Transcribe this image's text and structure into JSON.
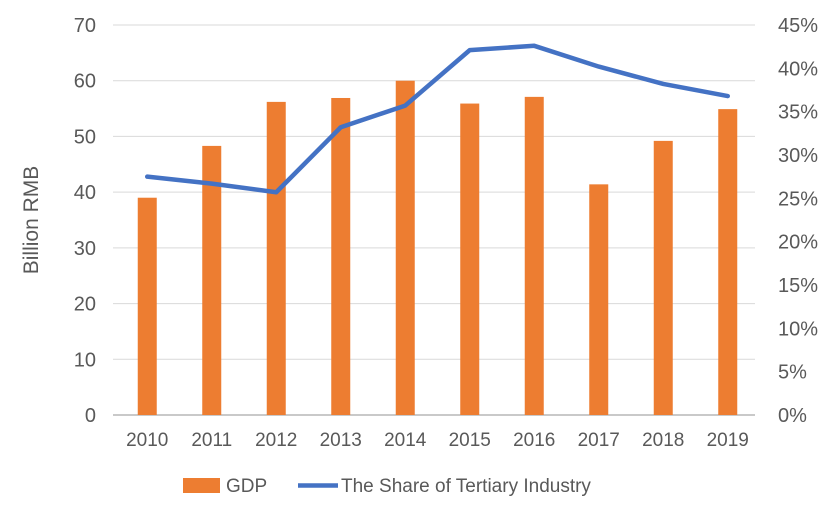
{
  "chart_data": {
    "type": "bar",
    "subtype": "combo-bar-line-dual-axis",
    "title": "",
    "categories": [
      "2010",
      "2011",
      "2012",
      "2013",
      "2014",
      "2015",
      "2016",
      "2017",
      "2018",
      "2019"
    ],
    "series": [
      {
        "name": "GDP",
        "type": "bar",
        "axis": "left",
        "color": "#ED7D31",
        "values": [
          39.0,
          48.3,
          56.2,
          56.9,
          60.0,
          55.9,
          57.1,
          41.4,
          49.2,
          54.9
        ]
      },
      {
        "name": "The Share of Tertiary Industry",
        "type": "line",
        "axis": "right",
        "color": "#4472C4",
        "values": [
          27.5,
          26.7,
          25.7,
          33.2,
          35.7,
          42.1,
          42.6,
          40.2,
          38.2,
          36.8
        ]
      }
    ],
    "left_axis": {
      "label": "Billion RMB",
      "min": 0,
      "max": 70,
      "step": 10,
      "tick_labels": [
        "0",
        "10",
        "20",
        "30",
        "40",
        "50",
        "60",
        "70"
      ]
    },
    "right_axis": {
      "label": "",
      "min": 0,
      "max": 45,
      "step": 5,
      "format": "percent",
      "tick_labels": [
        "0%",
        "5%",
        "10%",
        "15%",
        "20%",
        "25%",
        "30%",
        "35%",
        "40%",
        "45%"
      ]
    },
    "grid": true,
    "legend_position": "bottom",
    "colors": {
      "bar": "#ED7D31",
      "line": "#4472C4",
      "tick_text": "#595959",
      "gridline": "#D9D9D9",
      "axis_line": "#C9C9C9",
      "background": "#FFFFFF"
    }
  }
}
